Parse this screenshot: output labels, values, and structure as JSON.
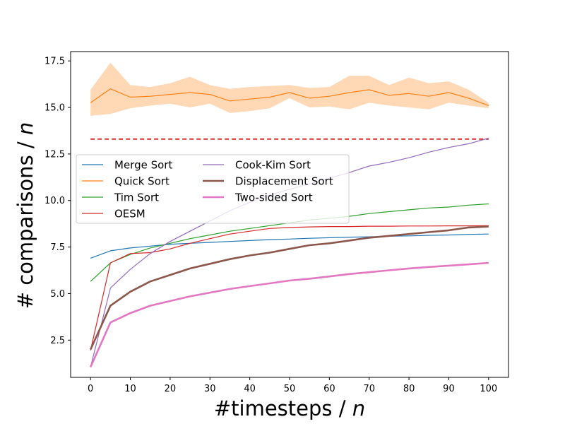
{
  "chart_data": {
    "type": "line",
    "title": "",
    "xlabel_main": "#timesteps / ",
    "xlabel_var": "n",
    "ylabel_main": "# comparisons / ",
    "ylabel_var": "n",
    "xlim": [
      -5,
      105
    ],
    "ylim": [
      0.5,
      18.0
    ],
    "xticks": [
      0,
      10,
      20,
      30,
      40,
      50,
      60,
      70,
      80,
      90,
      100
    ],
    "yticks": [
      2.5,
      5.0,
      7.5,
      10.0,
      12.5,
      15.0,
      17.5
    ],
    "ytick_labels": [
      "2.5",
      "5.0",
      "7.5",
      "10.0",
      "12.5",
      "15.0",
      "17.5"
    ],
    "grid": false,
    "legend_position": "center-left",
    "reference_line": {
      "y": 13.3,
      "color": "#d62728",
      "style": "dashed"
    },
    "series": [
      {
        "name": "Merge Sort",
        "color": "#1f77b4",
        "width": 1.2,
        "x": [
          0,
          5,
          10,
          15,
          20,
          25,
          30,
          35,
          40,
          45,
          50,
          55,
          60,
          65,
          70,
          75,
          80,
          85,
          90,
          95,
          100
        ],
        "y": [
          6.9,
          7.3,
          7.45,
          7.55,
          7.65,
          7.7,
          7.75,
          7.8,
          7.85,
          7.9,
          7.93,
          7.97,
          8.0,
          8.03,
          8.05,
          8.08,
          8.1,
          8.13,
          8.15,
          8.18,
          8.2
        ]
      },
      {
        "name": "Quick Sort",
        "color": "#ff7f0e",
        "width": 1.2,
        "x": [
          0,
          5,
          10,
          15,
          20,
          25,
          30,
          35,
          40,
          45,
          50,
          55,
          60,
          65,
          70,
          75,
          80,
          85,
          90,
          95,
          100
        ],
        "y": [
          15.25,
          16.0,
          15.55,
          15.6,
          15.7,
          15.8,
          15.7,
          15.35,
          15.45,
          15.55,
          15.8,
          15.5,
          15.6,
          15.8,
          15.95,
          15.65,
          15.75,
          15.6,
          15.8,
          15.5,
          15.1
        ],
        "band_upper": [
          15.95,
          17.4,
          16.2,
          16.1,
          16.3,
          16.65,
          16.2,
          16.0,
          16.1,
          16.15,
          16.2,
          16.05,
          16.1,
          16.7,
          16.7,
          16.2,
          16.6,
          16.3,
          16.4,
          15.95,
          15.25
        ],
        "band_lower": [
          14.55,
          14.65,
          14.95,
          15.1,
          15.2,
          15.0,
          15.2,
          14.7,
          14.8,
          14.95,
          15.5,
          15.0,
          15.05,
          14.9,
          15.25,
          15.1,
          15.0,
          14.9,
          15.25,
          15.1,
          14.95
        ]
      },
      {
        "name": "Tim Sort",
        "color": "#2ca02c",
        "width": 1.2,
        "x": [
          0,
          5,
          10,
          15,
          20,
          25,
          30,
          35,
          40,
          45,
          50,
          55,
          60,
          65,
          70,
          75,
          80,
          85,
          90,
          95,
          100
        ],
        "y": [
          5.65,
          6.65,
          7.1,
          7.45,
          7.7,
          7.95,
          8.15,
          8.35,
          8.5,
          8.65,
          8.8,
          8.95,
          9.05,
          9.15,
          9.3,
          9.4,
          9.5,
          9.6,
          9.65,
          9.75,
          9.82
        ]
      },
      {
        "name": "OESM",
        "color": "#d62728",
        "width": 1.2,
        "x": [
          0,
          5,
          10,
          15,
          20,
          25,
          30,
          35,
          40,
          45,
          50,
          55,
          60,
          65,
          70,
          75,
          80,
          85,
          90,
          95,
          100
        ],
        "y": [
          1.95,
          6.65,
          7.15,
          7.2,
          7.4,
          7.7,
          7.95,
          8.2,
          8.35,
          8.5,
          8.55,
          8.58,
          8.6,
          8.6,
          8.62,
          8.62,
          8.63,
          8.63,
          8.64,
          8.64,
          8.65
        ]
      },
      {
        "name": "Cook-Kim Sort",
        "color": "#9467bd",
        "width": 1.2,
        "x": [
          0,
          5,
          10,
          15,
          20,
          25,
          30,
          35,
          40,
          45,
          50,
          55,
          60,
          65,
          70,
          75,
          80,
          85,
          90,
          95,
          100
        ],
        "y": [
          1.05,
          5.3,
          6.3,
          7.15,
          7.8,
          8.35,
          8.9,
          9.45,
          9.9,
          10.3,
          10.6,
          10.9,
          11.2,
          11.5,
          11.85,
          12.05,
          12.3,
          12.6,
          12.85,
          13.05,
          13.35
        ]
      },
      {
        "name": "Displacement Sort",
        "color": "#8c564b",
        "width": 2.6,
        "x": [
          0,
          5,
          10,
          15,
          20,
          25,
          30,
          35,
          40,
          45,
          50,
          55,
          60,
          65,
          70,
          75,
          80,
          85,
          90,
          95,
          100
        ],
        "y": [
          2.0,
          4.35,
          5.1,
          5.65,
          6.0,
          6.35,
          6.6,
          6.85,
          7.05,
          7.2,
          7.4,
          7.6,
          7.7,
          7.85,
          8.0,
          8.1,
          8.2,
          8.3,
          8.4,
          8.55,
          8.6
        ]
      },
      {
        "name": "Two-sided Sort",
        "color": "#e377c2",
        "width": 2.6,
        "x": [
          0,
          5,
          10,
          15,
          20,
          25,
          30,
          35,
          40,
          45,
          50,
          55,
          60,
          65,
          70,
          75,
          80,
          85,
          90,
          95,
          100
        ],
        "y": [
          1.05,
          3.45,
          3.95,
          4.35,
          4.6,
          4.85,
          5.05,
          5.25,
          5.4,
          5.55,
          5.7,
          5.8,
          5.92,
          6.05,
          6.15,
          6.25,
          6.35,
          6.43,
          6.5,
          6.57,
          6.65
        ]
      }
    ]
  }
}
